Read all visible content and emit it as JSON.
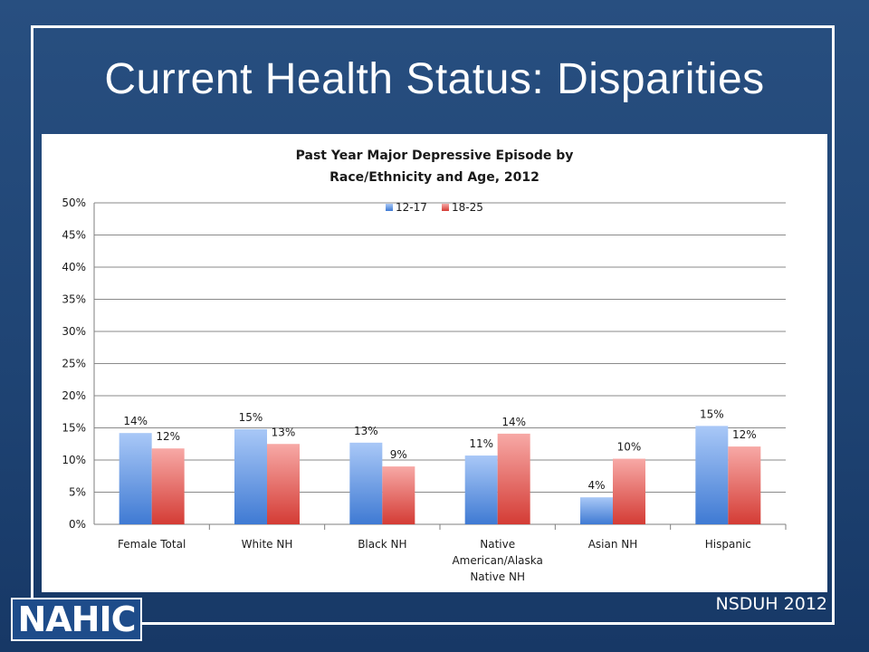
{
  "slide": {
    "title": "Current Health Status: Disparities",
    "source": "NSDUH 2012",
    "logo_text": "NAHIC"
  },
  "colors": {
    "background": "#1f4474",
    "series_12_17": "#8db4f0",
    "series_18_25": "#f08a8a"
  },
  "chart_data": {
    "type": "bar",
    "title": "Past Year Major Depressive Episode by Race/Ethnicity and Age, 2012",
    "title_lines": [
      "Past Year Major Depressive Episode by",
      "Race/Ethnicity and Age, 2012"
    ],
    "categories": [
      "Female Total",
      "White NH",
      "Black NH",
      "Native American/Alaska Native NH",
      "Asian NH",
      "Hispanic"
    ],
    "category_lines": [
      [
        "Female Total"
      ],
      [
        "White NH"
      ],
      [
        "Black NH"
      ],
      [
        "Native",
        "American/Alaska",
        "Native NH"
      ],
      [
        "Asian NH"
      ],
      [
        "Hispanic"
      ]
    ],
    "series": [
      {
        "name": "12-17",
        "values": [
          14.2,
          14.8,
          12.7,
          10.7,
          4.2,
          15.3
        ],
        "labels": [
          "14%",
          "15%",
          "13%",
          "11%",
          "4%",
          "15%"
        ]
      },
      {
        "name": "18-25",
        "values": [
          11.8,
          12.5,
          9.0,
          14.1,
          10.2,
          12.1
        ],
        "labels": [
          "12%",
          "13%",
          "9%",
          "14%",
          "10%",
          "12%"
        ]
      }
    ],
    "ylim": [
      0,
      50
    ],
    "yticks": [
      "0%",
      "5%",
      "10%",
      "15%",
      "20%",
      "25%",
      "30%",
      "35%",
      "40%",
      "45%",
      "50%"
    ],
    "grid": true,
    "legend": "top-center"
  }
}
